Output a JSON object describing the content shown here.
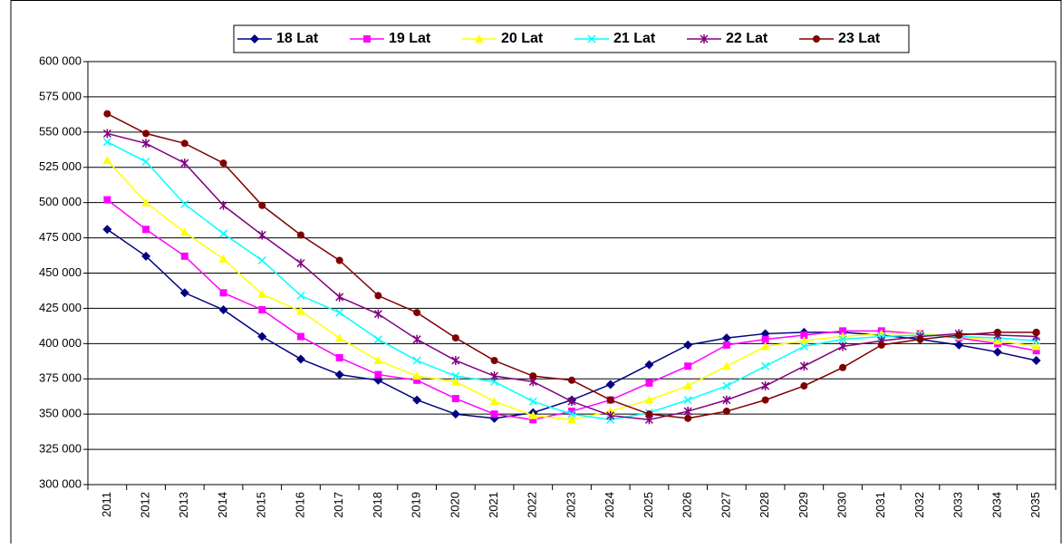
{
  "chart_data": {
    "type": "line",
    "categories": [
      "2011",
      "2012",
      "2013",
      "2014",
      "2015",
      "2016",
      "2017",
      "2018",
      "2019",
      "2020",
      "2021",
      "2022",
      "2023",
      "2024",
      "2025",
      "2026",
      "2027",
      "2028",
      "2029",
      "2030",
      "2031",
      "2032",
      "2033",
      "2034",
      "2035"
    ],
    "series": [
      {
        "name": "18 Lat",
        "color": "#000080",
        "marker": "diamond",
        "values": [
          481000,
          462000,
          436000,
          424000,
          405000,
          389000,
          378000,
          374000,
          360000,
          350000,
          347000,
          351000,
          360000,
          371000,
          385000,
          399000,
          404000,
          407000,
          408000,
          408000,
          406000,
          403000,
          399000,
          394000,
          388000
        ]
      },
      {
        "name": "19 Lat",
        "color": "#ff00ff",
        "marker": "square",
        "values": [
          502000,
          481000,
          462000,
          436000,
          424000,
          405000,
          390000,
          378000,
          374000,
          361000,
          350000,
          346000,
          352000,
          360000,
          372000,
          384000,
          399000,
          403000,
          406000,
          409000,
          409000,
          407000,
          404000,
          400000,
          395000
        ]
      },
      {
        "name": "20 Lat",
        "color": "#ffff00",
        "marker": "triangle",
        "values": [
          530000,
          500000,
          479000,
          460000,
          435000,
          423000,
          404000,
          388000,
          377000,
          373000,
          359000,
          349000,
          346000,
          352000,
          360000,
          370000,
          384000,
          398000,
          402000,
          405000,
          407000,
          407000,
          405000,
          402000,
          398000
        ]
      },
      {
        "name": "21 Lat",
        "color": "#00ffff",
        "marker": "x",
        "values": [
          543000,
          529000,
          499000,
          478000,
          459000,
          434000,
          422000,
          403000,
          388000,
          377000,
          373000,
          359000,
          350000,
          346000,
          351000,
          360000,
          370000,
          384000,
          398000,
          403000,
          405000,
          406000,
          405000,
          404000,
          402000
        ]
      },
      {
        "name": "22 Lat",
        "color": "#800080",
        "marker": "star",
        "values": [
          549000,
          542000,
          528000,
          498000,
          477000,
          457000,
          433000,
          421000,
          403000,
          388000,
          377000,
          373000,
          359000,
          349000,
          346000,
          352000,
          360000,
          370000,
          384000,
          398000,
          402000,
          405000,
          407000,
          406000,
          405000
        ]
      },
      {
        "name": "23 Lat",
        "color": "#800000",
        "marker": "circle",
        "values": [
          563000,
          549000,
          542000,
          528000,
          498000,
          477000,
          459000,
          434000,
          422000,
          404000,
          388000,
          377000,
          374000,
          360000,
          350000,
          347000,
          352000,
          360000,
          370000,
          383000,
          399000,
          403000,
          406000,
          408000,
          408000
        ]
      }
    ],
    "ylim": [
      300000,
      600000
    ],
    "yticks": [
      {
        "value": 300000,
        "label": "300 000"
      },
      {
        "value": 325000,
        "label": "325 000"
      },
      {
        "value": 350000,
        "label": "350 000"
      },
      {
        "value": 375000,
        "label": "375 000"
      },
      {
        "value": 400000,
        "label": "400 000"
      },
      {
        "value": 425000,
        "label": "425 000"
      },
      {
        "value": 450000,
        "label": "450 000"
      },
      {
        "value": 475000,
        "label": "475 000"
      },
      {
        "value": 500000,
        "label": "500 000"
      },
      {
        "value": 525000,
        "label": "525 000"
      },
      {
        "value": 550000,
        "label": "550 000"
      },
      {
        "value": 575000,
        "label": "575 000"
      },
      {
        "value": 600000,
        "label": "600 000"
      }
    ],
    "grid": true
  }
}
